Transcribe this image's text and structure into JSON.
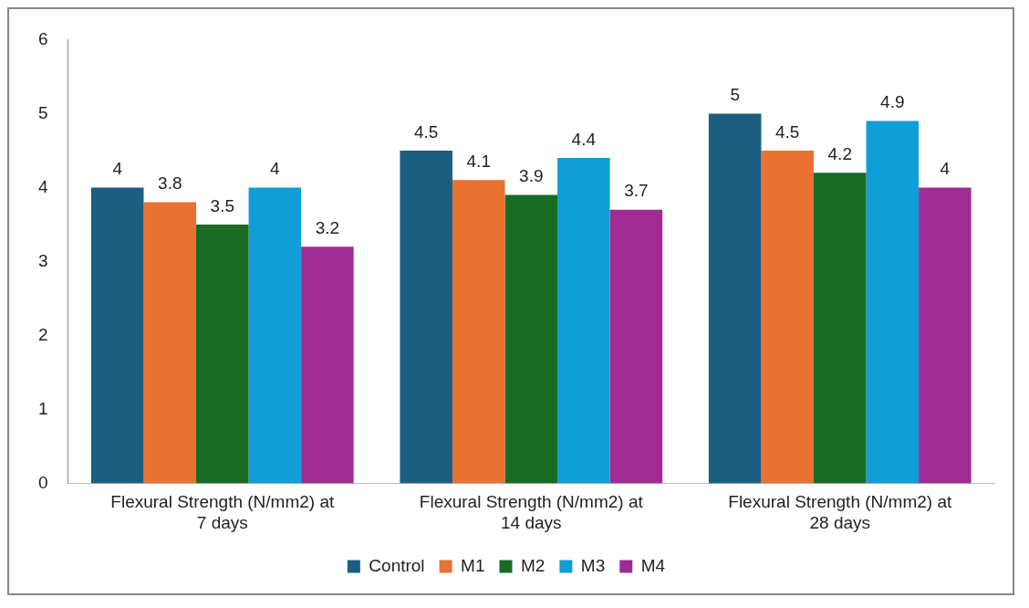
{
  "chart_data": {
    "type": "bar",
    "categories": [
      "Flexural Strength (N/mm2) at 7 days",
      "Flexural Strength (N/mm2) at 14 days",
      "Flexural Strength (N/mm2) at 28 days"
    ],
    "series": [
      {
        "name": "Control",
        "color": "#1b5e80",
        "values": [
          4,
          4.5,
          5
        ]
      },
      {
        "name": "M1",
        "color": "#e97132",
        "values": [
          3.8,
          4.1,
          4.5
        ]
      },
      {
        "name": "M2",
        "color": "#196b24",
        "values": [
          3.5,
          3.9,
          4.2
        ]
      },
      {
        "name": "M3",
        "color": "#0f9ed5",
        "values": [
          4,
          4.4,
          4.9
        ]
      },
      {
        "name": "M4",
        "color": "#a02b93",
        "values": [
          3.2,
          3.7,
          4
        ]
      }
    ],
    "ylim": [
      0,
      6
    ],
    "yticks": [
      0,
      1,
      2,
      3,
      4,
      5,
      6
    ],
    "grid": false,
    "legend": "bottom",
    "data_labels": true
  }
}
